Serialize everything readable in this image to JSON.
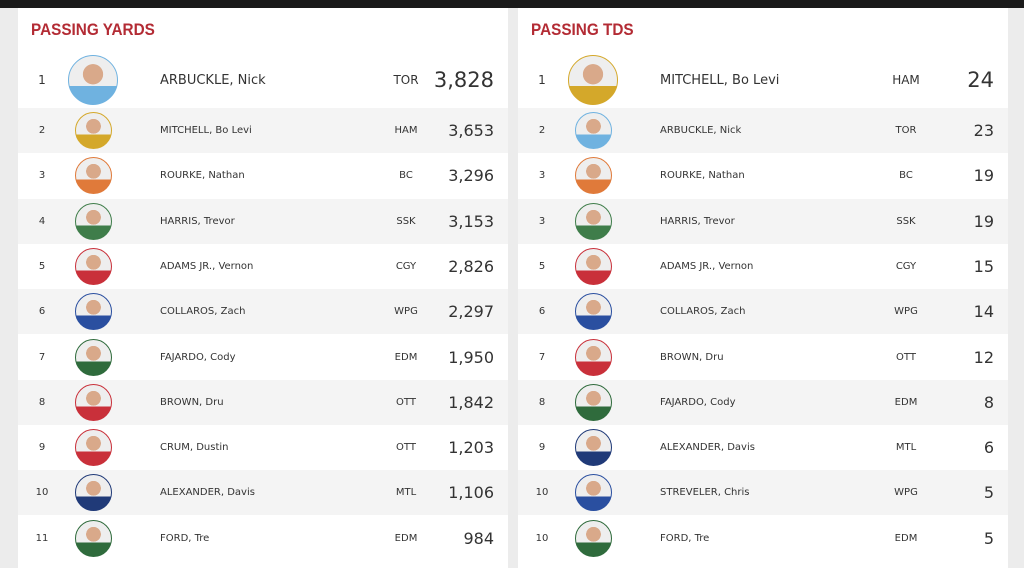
{
  "panels": [
    {
      "title": "PASSING YARDS",
      "rows": [
        {
          "rank": "1",
          "name": "ARBUCKLE, Nick",
          "team": "TOR",
          "value": "3,828"
        },
        {
          "rank": "2",
          "name": "MITCHELL, Bo Levi",
          "team": "HAM",
          "value": "3,653"
        },
        {
          "rank": "3",
          "name": "ROURKE, Nathan",
          "team": "BC",
          "value": "3,296"
        },
        {
          "rank": "4",
          "name": "HARRIS, Trevor",
          "team": "SSK",
          "value": "3,153"
        },
        {
          "rank": "5",
          "name": "ADAMS JR., Vernon",
          "team": "CGY",
          "value": "2,826"
        },
        {
          "rank": "6",
          "name": "COLLAROS, Zach",
          "team": "WPG",
          "value": "2,297"
        },
        {
          "rank": "7",
          "name": "FAJARDO, Cody",
          "team": "EDM",
          "value": "1,950"
        },
        {
          "rank": "8",
          "name": "BROWN, Dru",
          "team": "OTT",
          "value": "1,842"
        },
        {
          "rank": "9",
          "name": "CRUM, Dustin",
          "team": "OTT",
          "value": "1,203"
        },
        {
          "rank": "10",
          "name": "ALEXANDER, Davis",
          "team": "MTL",
          "value": "1,106"
        },
        {
          "rank": "11",
          "name": "FORD, Tre",
          "team": "EDM",
          "value": "984"
        }
      ]
    },
    {
      "title": "PASSING TDS",
      "rows": [
        {
          "rank": "1",
          "name": "MITCHELL, Bo Levi",
          "team": "HAM",
          "value": "24"
        },
        {
          "rank": "2",
          "name": "ARBUCKLE, Nick",
          "team": "TOR",
          "value": "23"
        },
        {
          "rank": "3",
          "name": "ROURKE, Nathan",
          "team": "BC",
          "value": "19"
        },
        {
          "rank": "3",
          "name": "HARRIS, Trevor",
          "team": "SSK",
          "value": "19"
        },
        {
          "rank": "5",
          "name": "ADAMS JR., Vernon",
          "team": "CGY",
          "value": "15"
        },
        {
          "rank": "6",
          "name": "COLLAROS, Zach",
          "team": "WPG",
          "value": "14"
        },
        {
          "rank": "7",
          "name": "BROWN, Dru",
          "team": "OTT",
          "value": "12"
        },
        {
          "rank": "8",
          "name": "FAJARDO, Cody",
          "team": "EDM",
          "value": "8"
        },
        {
          "rank": "9",
          "name": "ALEXANDER, Davis",
          "team": "MTL",
          "value": "6"
        },
        {
          "rank": "10",
          "name": "STREVELER, Chris",
          "team": "WPG",
          "value": "5"
        },
        {
          "rank": "10",
          "name": "FORD, Tre",
          "team": "EDM",
          "value": "5"
        }
      ]
    }
  ]
}
